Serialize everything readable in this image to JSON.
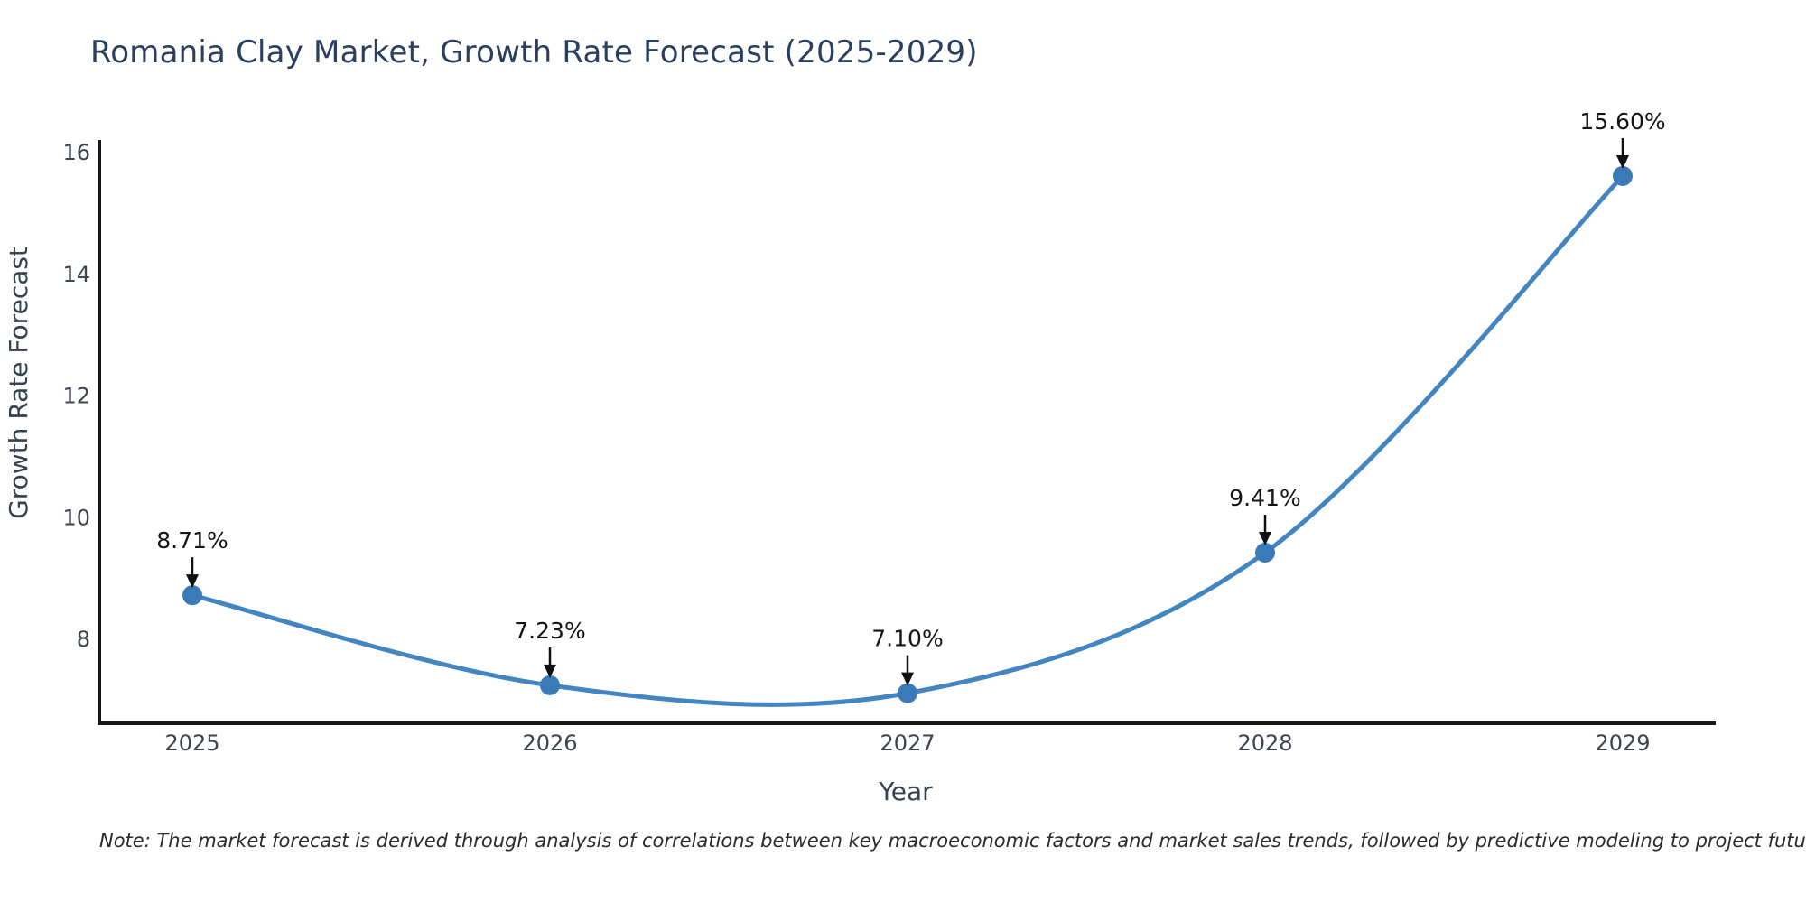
{
  "header": {
    "title": "Romania Clay Market, Growth Rate Forecast (2025-2029)"
  },
  "footer": {
    "note": "Note: The market forecast is derived through analysis of correlations between key macroeconomic factors and market sales trends, followed by predictive modeling to project future sales"
  },
  "chart_data": {
    "type": "line",
    "title": "Romania Clay Market, Growth Rate Forecast (2025-2029)",
    "xlabel": "Year",
    "ylabel": "Growth Rate Forecast",
    "x": [
      2025,
      2026,
      2027,
      2028,
      2029
    ],
    "x_tick_labels": [
      "2025",
      "2026",
      "2027",
      "2028",
      "2029"
    ],
    "y_ticks": [
      8,
      10,
      12,
      14,
      16
    ],
    "ylim": [
      6.6,
      16.2
    ],
    "series": [
      {
        "name": "Growth Rate Forecast",
        "values": [
          8.71,
          7.23,
          7.1,
          9.41,
          15.6
        ]
      }
    ],
    "point_labels": [
      "8.71%",
      "7.23%",
      "7.10%",
      "9.41%",
      "15.60%"
    ],
    "curve": "spline",
    "grid": false,
    "legend_position": "none",
    "line_color": "#4285c0",
    "marker_color": "#3a7ab8",
    "annotation_color": "#111111",
    "axis_color": "#161616",
    "tick_color": "#3d4351",
    "title_color": "#2a3f5f"
  }
}
